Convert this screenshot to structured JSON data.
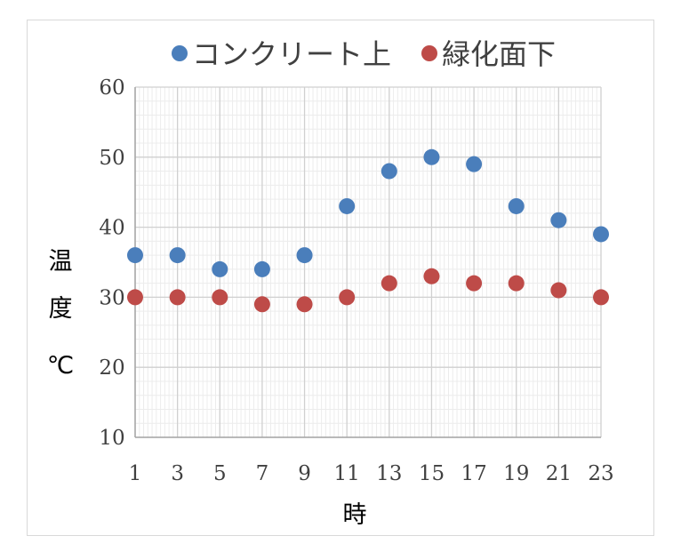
{
  "chart_data": {
    "type": "scatter",
    "xlabel": "時",
    "ylabel_chars": [
      "温",
      "度",
      "℃"
    ],
    "x": [
      1,
      3,
      5,
      7,
      9,
      11,
      13,
      15,
      17,
      19,
      21,
      23
    ],
    "xticks": [
      1,
      3,
      5,
      7,
      9,
      11,
      13,
      15,
      17,
      19,
      21,
      23
    ],
    "yticks": [
      10,
      20,
      30,
      40,
      50,
      60
    ],
    "xlim": [
      1,
      23
    ],
    "ylim": [
      10,
      60
    ],
    "grid": true,
    "legend_position": "top",
    "series": [
      {
        "name": "コンクリート上",
        "color": "#4a7ebb",
        "values": [
          36,
          36,
          34,
          34,
          36,
          43,
          48,
          50,
          49,
          43,
          41,
          39
        ]
      },
      {
        "name": "緑化面下",
        "color": "#be4b48",
        "values": [
          30,
          30,
          30,
          29,
          29,
          30,
          32,
          33,
          32,
          32,
          31,
          30
        ]
      }
    ]
  }
}
